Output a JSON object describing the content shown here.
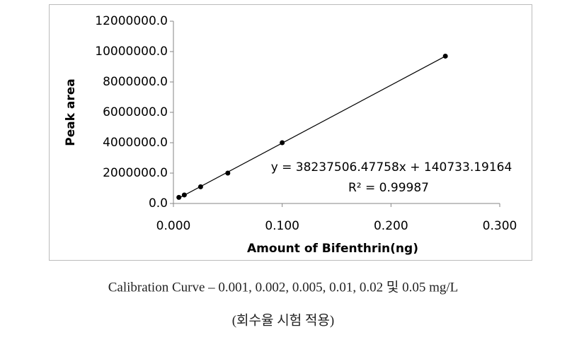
{
  "chart_data": {
    "type": "scatter",
    "x_label": "Amount of Bifenthrin(ng)",
    "y_label": "Peak area",
    "x": [
      0.005,
      0.01,
      0.025,
      0.05,
      0.1,
      0.25
    ],
    "values": [
      400000,
      560000,
      1100000,
      2000000,
      4000000,
      9700000
    ],
    "color": "#000000",
    "trendline": true,
    "annotations": [
      "y = 38237506.47758x + 140733.19164",
      "R² = 0.99987"
    ],
    "xlim": [
      0,
      0.3
    ],
    "xticks": [
      {
        "value": 0,
        "label": "0.000"
      },
      {
        "value": 0.1,
        "label": "0.100"
      },
      {
        "value": 0.2,
        "label": "0.200"
      },
      {
        "value": 0.3,
        "label": "0.300"
      }
    ],
    "ylim": [
      0,
      12000000
    ],
    "yticks": [
      {
        "value": 0,
        "label": "0.0"
      },
      {
        "value": 2000000,
        "label": "2000000.0"
      },
      {
        "value": 4000000,
        "label": "4000000.0"
      },
      {
        "value": 6000000,
        "label": "6000000.0"
      },
      {
        "value": 8000000,
        "label": "8000000.0"
      },
      {
        "value": 10000000,
        "label": "10000000.0"
      },
      {
        "value": 12000000,
        "label": "12000000.0"
      }
    ]
  },
  "caption": [
    "Calibration Curve – 0.001, 0.002, 0.005, 0.01, 0.02 및 0.05 mg/L",
    "(회수율 시험 적용)"
  ]
}
